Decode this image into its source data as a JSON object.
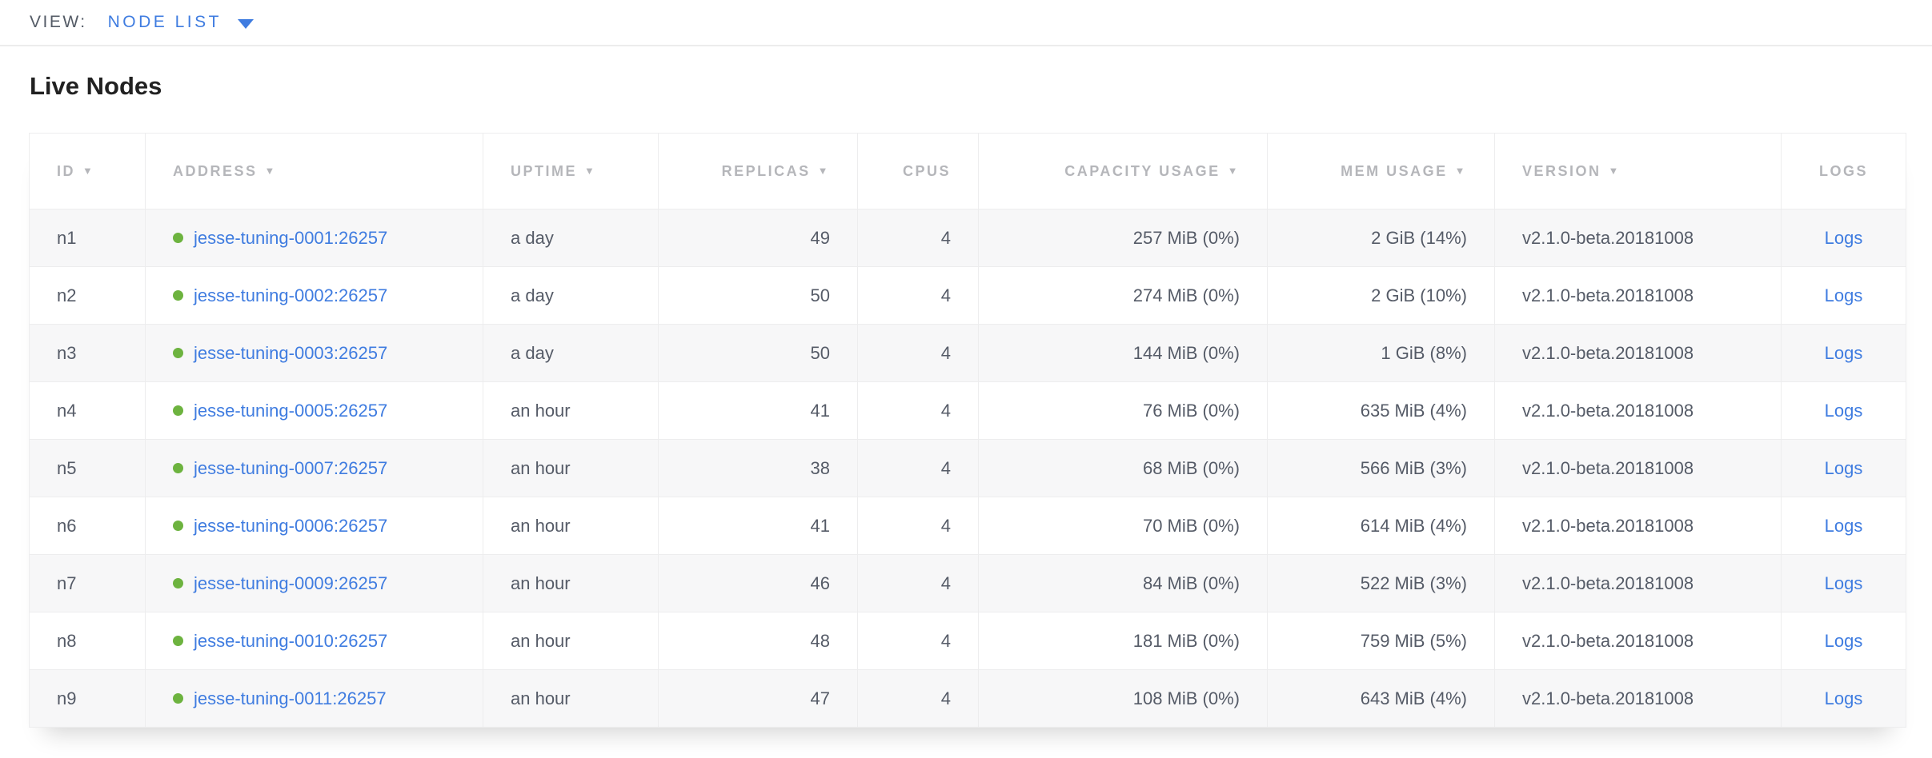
{
  "view_bar": {
    "label": "VIEW:",
    "selected": "NODE LIST"
  },
  "page": {
    "title": "Live Nodes"
  },
  "colors": {
    "link_blue": "#3f7ce0",
    "healthy_green": "#6db33f",
    "header_gray": "#b5b6ba",
    "cell_text": "#555b67",
    "row_stripe": "#f7f7f8",
    "border": "#ededee"
  },
  "icons": {
    "sort_indicator": "▼",
    "dropdown_caret": "caret-down",
    "node_health": "green-dot"
  },
  "table": {
    "sort_indicator": "▼",
    "columns": [
      {
        "key": "id",
        "label": "ID",
        "sortable": true,
        "align": "left"
      },
      {
        "key": "address",
        "label": "ADDRESS",
        "sortable": true,
        "align": "left"
      },
      {
        "key": "uptime",
        "label": "UPTIME",
        "sortable": true,
        "align": "left"
      },
      {
        "key": "replicas",
        "label": "REPLICAS",
        "sortable": true,
        "align": "right"
      },
      {
        "key": "cpus",
        "label": "CPUS",
        "sortable": false,
        "align": "right"
      },
      {
        "key": "capacity",
        "label": "CAPACITY USAGE",
        "sortable": true,
        "align": "right"
      },
      {
        "key": "mem",
        "label": "MEM USAGE",
        "sortable": true,
        "align": "right"
      },
      {
        "key": "version",
        "label": "VERSION",
        "sortable": true,
        "align": "left"
      },
      {
        "key": "logs",
        "label": "LOGS",
        "sortable": false,
        "align": "center"
      }
    ],
    "rows": [
      {
        "id": "n1",
        "address": "jesse-tuning-0001:26257",
        "status": "healthy",
        "uptime": "a day",
        "replicas": "49",
        "cpus": "4",
        "capacity": "257 MiB (0%)",
        "mem": "2 GiB (14%)",
        "version": "v2.1.0-beta.20181008",
        "logs": "Logs"
      },
      {
        "id": "n2",
        "address": "jesse-tuning-0002:26257",
        "status": "healthy",
        "uptime": "a day",
        "replicas": "50",
        "cpus": "4",
        "capacity": "274 MiB (0%)",
        "mem": "2 GiB (10%)",
        "version": "v2.1.0-beta.20181008",
        "logs": "Logs"
      },
      {
        "id": "n3",
        "address": "jesse-tuning-0003:26257",
        "status": "healthy",
        "uptime": "a day",
        "replicas": "50",
        "cpus": "4",
        "capacity": "144 MiB (0%)",
        "mem": "1 GiB (8%)",
        "version": "v2.1.0-beta.20181008",
        "logs": "Logs"
      },
      {
        "id": "n4",
        "address": "jesse-tuning-0005:26257",
        "status": "healthy",
        "uptime": "an hour",
        "replicas": "41",
        "cpus": "4",
        "capacity": "76 MiB (0%)",
        "mem": "635 MiB (4%)",
        "version": "v2.1.0-beta.20181008",
        "logs": "Logs"
      },
      {
        "id": "n5",
        "address": "jesse-tuning-0007:26257",
        "status": "healthy",
        "uptime": "an hour",
        "replicas": "38",
        "cpus": "4",
        "capacity": "68 MiB (0%)",
        "mem": "566 MiB (3%)",
        "version": "v2.1.0-beta.20181008",
        "logs": "Logs"
      },
      {
        "id": "n6",
        "address": "jesse-tuning-0006:26257",
        "status": "healthy",
        "uptime": "an hour",
        "replicas": "41",
        "cpus": "4",
        "capacity": "70 MiB (0%)",
        "mem": "614 MiB (4%)",
        "version": "v2.1.0-beta.20181008",
        "logs": "Logs"
      },
      {
        "id": "n7",
        "address": "jesse-tuning-0009:26257",
        "status": "healthy",
        "uptime": "an hour",
        "replicas": "46",
        "cpus": "4",
        "capacity": "84 MiB (0%)",
        "mem": "522 MiB (3%)",
        "version": "v2.1.0-beta.20181008",
        "logs": "Logs"
      },
      {
        "id": "n8",
        "address": "jesse-tuning-0010:26257",
        "status": "healthy",
        "uptime": "an hour",
        "replicas": "48",
        "cpus": "4",
        "capacity": "181 MiB (0%)",
        "mem": "759 MiB (5%)",
        "version": "v2.1.0-beta.20181008",
        "logs": "Logs"
      },
      {
        "id": "n9",
        "address": "jesse-tuning-0011:26257",
        "status": "healthy",
        "uptime": "an hour",
        "replicas": "47",
        "cpus": "4",
        "capacity": "108 MiB (0%)",
        "mem": "643 MiB (4%)",
        "version": "v2.1.0-beta.20181008",
        "logs": "Logs"
      }
    ]
  }
}
